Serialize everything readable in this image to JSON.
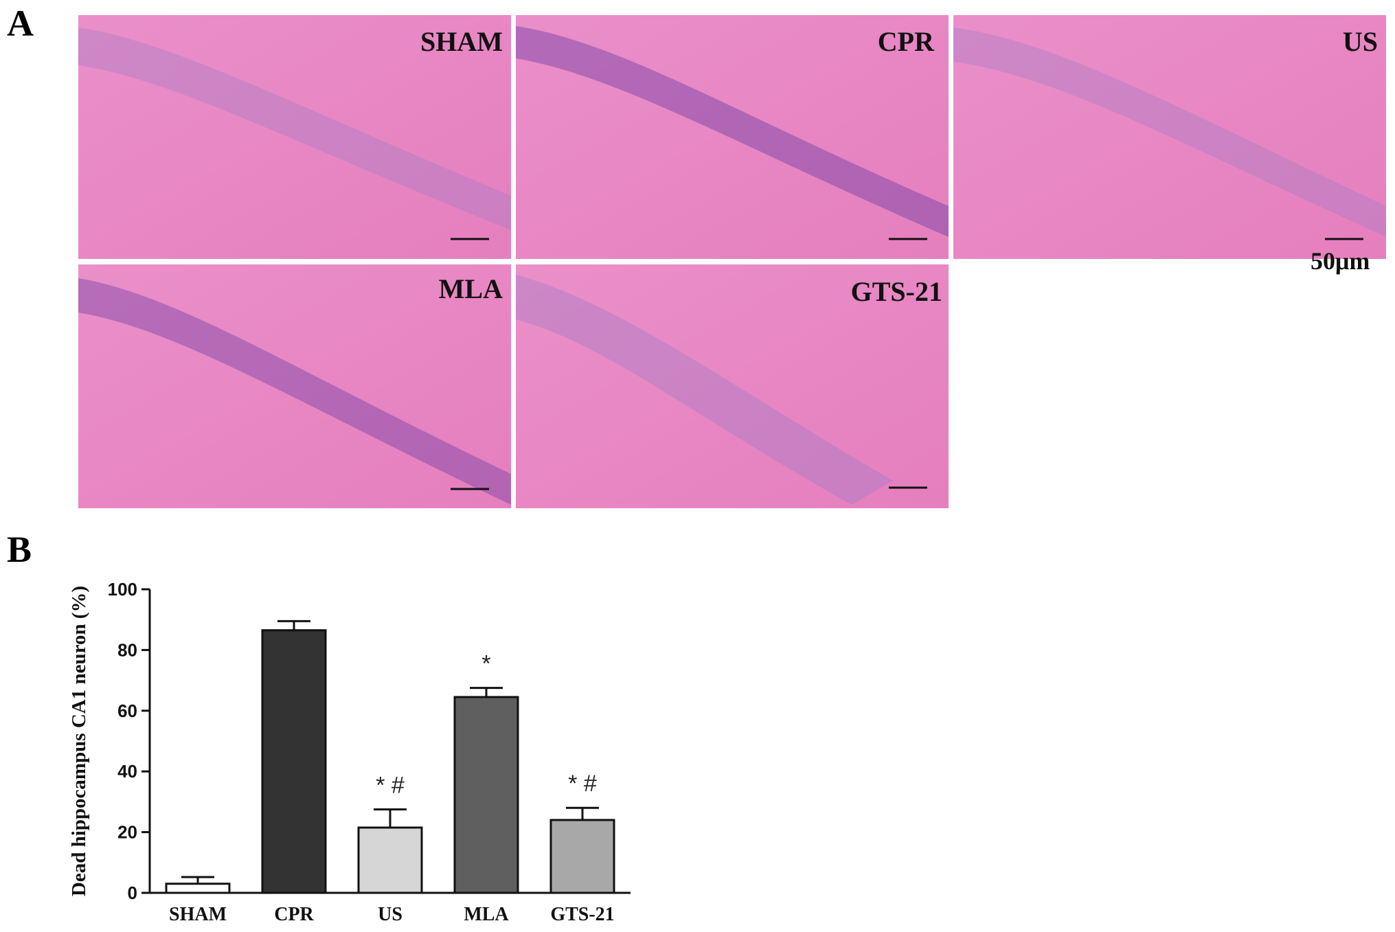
{
  "figure": {
    "panel_a_label": "A",
    "panel_b_label": "B",
    "scale_bar_label": "50μm",
    "micrographs": [
      {
        "name": "SHAM"
      },
      {
        "name": "CPR"
      },
      {
        "name": "US"
      },
      {
        "name": "MLA"
      },
      {
        "name": "GTS-21"
      }
    ],
    "tissue_colors": {
      "background": "#e889c4",
      "neuron_layer": "#9a7bc6",
      "nuclei": "#5c2f8f"
    }
  },
  "chart_data": {
    "type": "bar",
    "title": "",
    "xlabel": "",
    "ylabel": "Dead hippocampus CA1 neuron (%)",
    "ylim": [
      0,
      100
    ],
    "yticks": [
      0,
      20,
      40,
      60,
      80,
      100
    ],
    "categories": [
      "SHAM",
      "CPR",
      "US",
      "MLA",
      "GTS-21"
    ],
    "values": [
      3,
      86.5,
      21.5,
      64.5,
      24
    ],
    "errors": [
      2.2,
      3,
      6,
      3,
      4
    ],
    "annotations": [
      "",
      "",
      "* #",
      "*",
      "* #"
    ],
    "bar_colors": [
      "#ffffff",
      "#333333",
      "#d6d6d6",
      "#5f5f5f",
      "#a8a8a8"
    ],
    "grid": false
  }
}
